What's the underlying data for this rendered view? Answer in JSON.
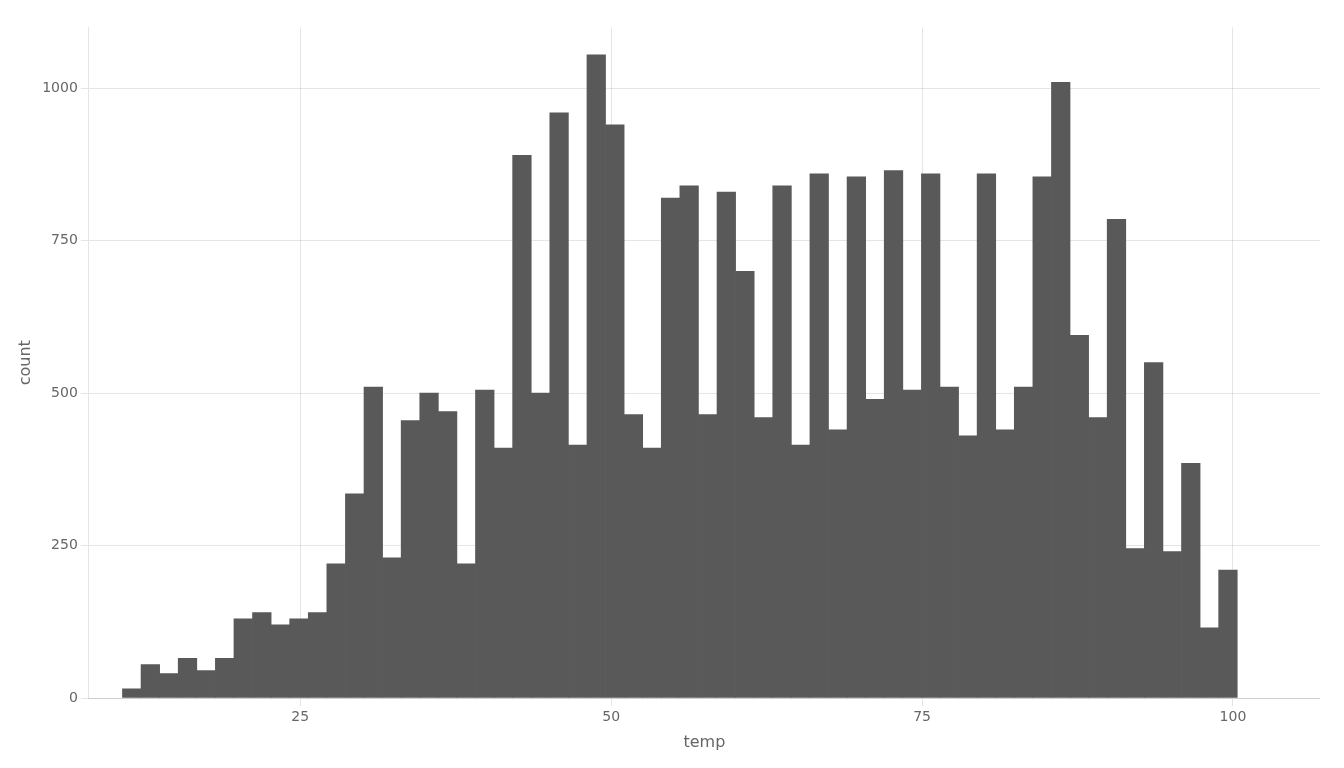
{
  "chart_data": {
    "type": "histogram",
    "xlabel": "temp",
    "ylabel": "count",
    "color": "#595959",
    "bins": [
      10.706,
      12.2,
      13.694,
      15.188,
      16.682,
      18.176,
      19.67,
      21.164,
      22.658,
      24.152,
      25.646,
      27.14,
      28.634,
      30.128,
      31.622,
      33.116,
      34.61,
      36.104,
      37.598,
      39.092,
      40.586,
      42.08,
      43.574,
      45.068,
      46.562,
      48.056,
      49.55,
      51.044,
      52.538,
      54.032,
      55.526,
      57.02,
      58.514,
      60.008,
      61.502,
      62.996,
      64.49,
      65.984,
      67.478,
      68.972,
      70.466,
      71.96,
      73.454,
      74.948,
      76.442,
      77.936,
      79.43,
      80.924,
      82.418,
      83.912,
      85.406,
      86.9,
      88.394,
      89.888,
      91.382,
      92.876,
      94.37,
      95.864,
      97.358,
      98.852,
      100.346
    ],
    "values": [
      15,
      55,
      40,
      65,
      45,
      65,
      130,
      140,
      120,
      130,
      140,
      220,
      335,
      510,
      230,
      455,
      500,
      470,
      220,
      505,
      410,
      890,
      500,
      960,
      415,
      1055,
      940,
      465,
      410,
      820,
      840,
      465,
      830,
      700,
      460,
      840,
      415,
      860,
      440,
      855,
      490,
      865,
      505,
      860,
      510,
      430,
      860,
      440,
      510,
      855,
      1010,
      595,
      460,
      785,
      245,
      550,
      240,
      385,
      115,
      210
    ],
    "xlim": [
      8,
      107
    ],
    "ylim": [
      0,
      1100
    ],
    "xticks": [
      25,
      50,
      75,
      100
    ],
    "yticks": [
      0,
      250,
      500,
      750,
      1000
    ],
    "grid": true
  }
}
